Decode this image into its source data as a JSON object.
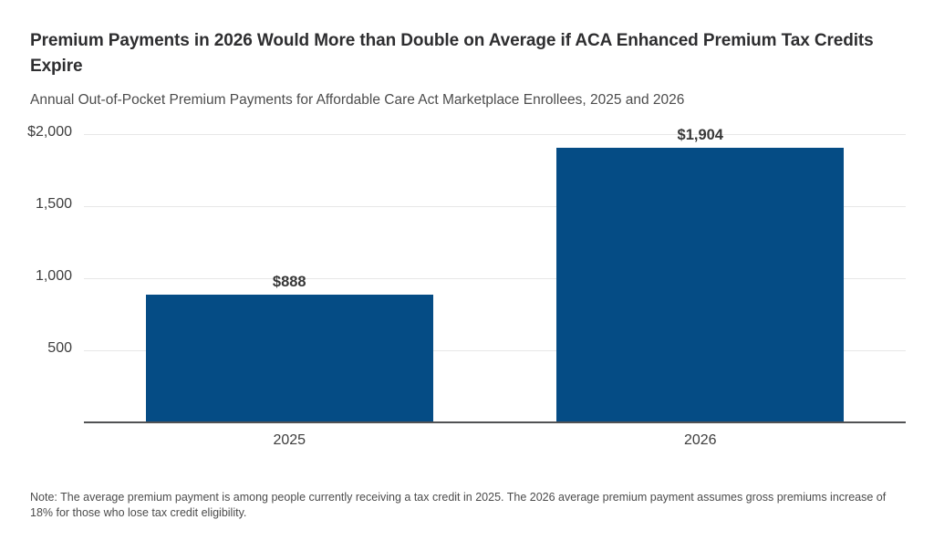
{
  "header": {
    "title": "Premium Payments in 2026 Would More than Double on Average if ACA Enhanced Premium Tax Credits Expire",
    "subtitle": "Annual Out-of-Pocket Premium Payments for Affordable Care Act Marketplace Enrollees, 2025 and 2026"
  },
  "chart_data": {
    "type": "bar",
    "title": "Premium Payments in 2026 Would More than Double on Average if ACA Enhanced Premium Tax Credits Expire",
    "subtitle": "Annual Out-of-Pocket Premium Payments for Affordable Care Act Marketplace Enrollees, 2025 and 2026",
    "categories": [
      "2025",
      "2026"
    ],
    "values": [
      888,
      1904
    ],
    "value_labels": [
      "$888",
      "$1,904"
    ],
    "xlabel": "",
    "ylabel": "",
    "ylim": [
      0,
      2000
    ],
    "yticks": [
      {
        "value": 500,
        "label": "500"
      },
      {
        "value": 1000,
        "label": "1,000"
      },
      {
        "value": 1500,
        "label": "1,500"
      },
      {
        "value": 2000,
        "label": "$2,000"
      }
    ],
    "grid": "horizontal-on",
    "legend": "none",
    "bar_color": "#054c85"
  },
  "note": {
    "text": "Note: The average premium payment is among people currently receiving a tax credit in 2025. The 2026 average premium payment assumes gross premiums increase of 18% for those who lose tax credit eligibility."
  },
  "colors": {
    "bar": "#054c85",
    "gridline": "#e7e7e7",
    "axis_line": "#515254",
    "title_text": "#2e2e30",
    "body_text": "#4c4c4c",
    "tick_text": "#3d3d3d",
    "background": "#ffffff"
  }
}
